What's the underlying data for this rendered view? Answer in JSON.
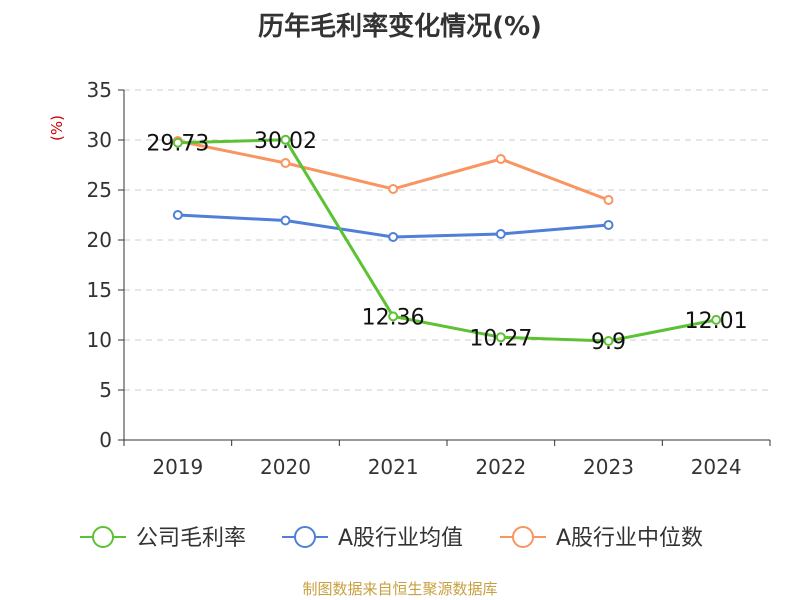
{
  "chart_data": {
    "type": "line",
    "title": "历年毛利率变化情况(%)",
    "ylabel": "(%)",
    "xlabel": "",
    "categories": [
      "2019",
      "2020",
      "2021",
      "2022",
      "2023",
      "2024"
    ],
    "ylim": [
      0,
      35
    ],
    "yticks": [
      0,
      5,
      10,
      15,
      20,
      25,
      30,
      35
    ],
    "grid": true,
    "legend_position": "bottom",
    "series": [
      {
        "name": "公司毛利率",
        "color": "#5cc234",
        "values": [
          29.73,
          30.02,
          12.36,
          10.27,
          9.9,
          12.01
        ],
        "show_labels": true
      },
      {
        "name": "A股行业均值",
        "color": "#4f7fd8",
        "values": [
          22.5,
          21.95,
          20.3,
          20.6,
          21.5,
          null
        ],
        "show_labels": false
      },
      {
        "name": "A股行业中位数",
        "color": "#f89560",
        "values": [
          29.9,
          27.7,
          25.1,
          28.1,
          24.0,
          null
        ],
        "show_labels": false
      }
    ]
  },
  "source": "制图数据来自恒生聚源数据库"
}
